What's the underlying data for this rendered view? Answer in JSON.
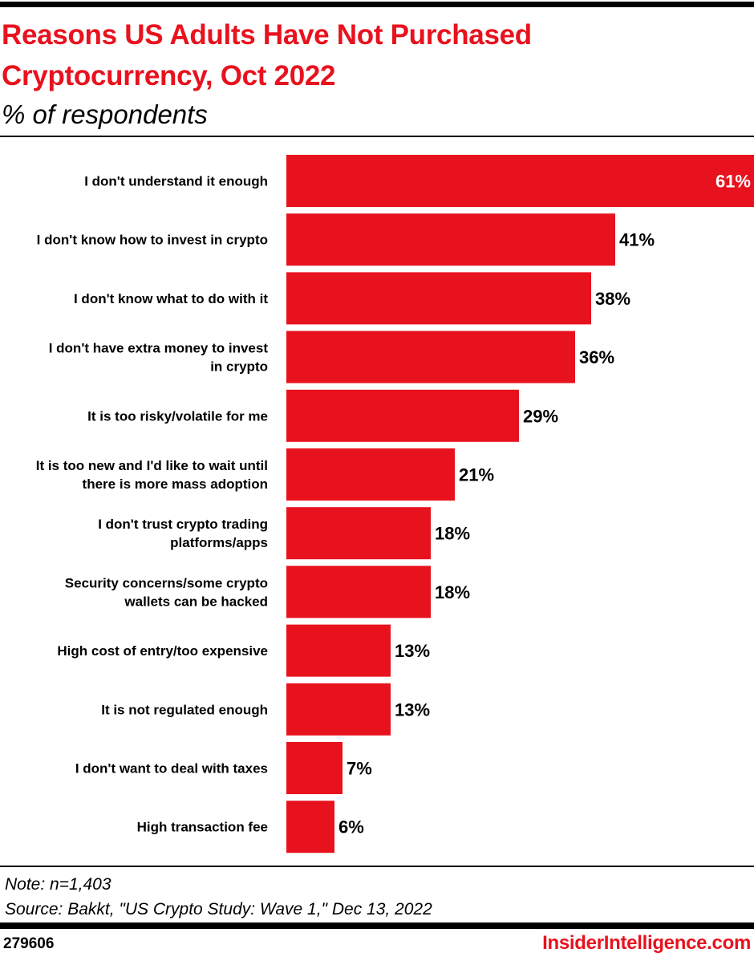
{
  "header": {
    "title_line1": "Reasons US Adults Have Not Purchased",
    "title_line2": "Cryptocurrency, Oct 2022",
    "subtitle": "% of respondents"
  },
  "chart_data": {
    "type": "bar",
    "orientation": "horizontal",
    "title": "Reasons US Adults Have Not Purchased Cryptocurrency, Oct 2022",
    "subtitle": "% of respondents",
    "categories": [
      [
        "I don't understand it enough"
      ],
      [
        "I don't know how to invest in crypto"
      ],
      [
        "I don't know what to do with it"
      ],
      [
        "I don't have extra money to invest",
        "in crypto"
      ],
      [
        "It is too risky/volatile for me"
      ],
      [
        "It is too new and I'd like to wait until",
        "there is more mass adoption"
      ],
      [
        "I don't trust crypto trading",
        "platforms/apps"
      ],
      [
        "Security concerns/some crypto",
        "wallets can be hacked"
      ],
      [
        "High cost of entry/too expensive"
      ],
      [
        "It is not regulated enough"
      ],
      [
        "I don't want to deal with taxes"
      ],
      [
        "High transaction fee"
      ]
    ],
    "values": [
      61,
      41,
      38,
      36,
      29,
      21,
      18,
      18,
      13,
      13,
      7,
      6
    ],
    "value_labels": [
      "61%",
      "41%",
      "38%",
      "36%",
      "29%",
      "21%",
      "18%",
      "18%",
      "13%",
      "13%",
      "7%",
      "6%"
    ],
    "bar_color": "#e8121e",
    "grid": false,
    "legend": "none"
  },
  "footer": {
    "note": "Note: n=1,403",
    "source": "Source: Bakkt, \"US Crypto Study: Wave 1,\" Dec 13, 2022",
    "chart_id": "279606",
    "brand": "InsiderIntelligence.com"
  }
}
